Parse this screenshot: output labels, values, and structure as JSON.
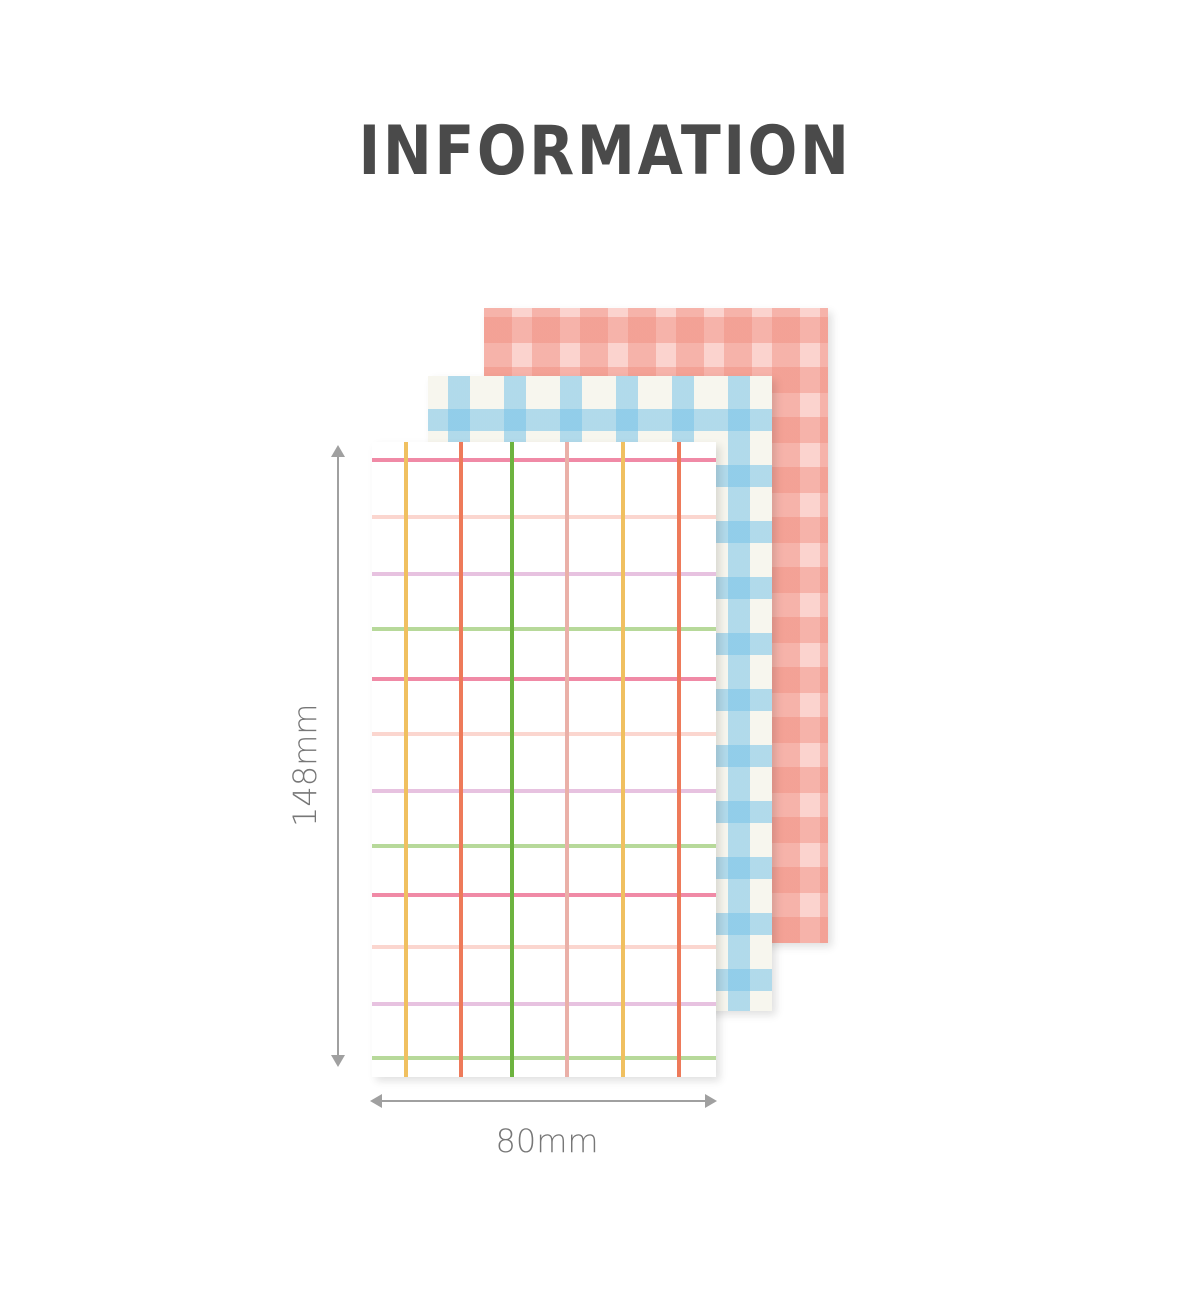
{
  "title": "INFORMATION",
  "dimensions": {
    "height_label": "148mm",
    "width_label": "80mm"
  },
  "colors": {
    "title": "#4a4a4a",
    "pink_gingham": "#f5a89b",
    "blue_gingham": "#78c3e8",
    "grid_lines": [
      "#f08aa6",
      "#fbd6cf",
      "#e7c2e0",
      "#b7d99a",
      "#f0c060",
      "#ee7a5a",
      "#6db33f",
      "#eab0a8"
    ]
  }
}
